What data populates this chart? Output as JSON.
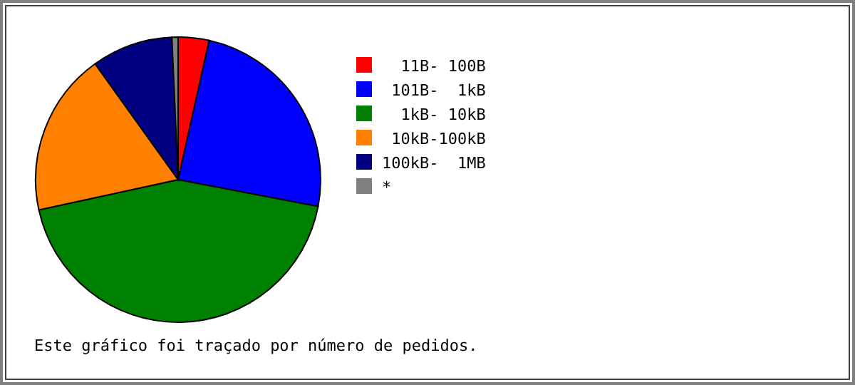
{
  "chart_data": {
    "type": "pie",
    "categories": [
      "  11B- 100B",
      " 101B-  1kB",
      "  1kB- 10kB",
      " 10kB-100kB",
      "100kB-  1MB",
      "*"
    ],
    "values": [
      3.5,
      24.5,
      43.6,
      18.5,
      9.2,
      0.7
    ],
    "colors": [
      "#ff0000",
      "#0000ff",
      "#008000",
      "#ff8000",
      "#000080",
      "#808080"
    ],
    "legend": "right",
    "annotations": [
      "Este gráfico foi traçado por número de pedidos."
    ]
  }
}
